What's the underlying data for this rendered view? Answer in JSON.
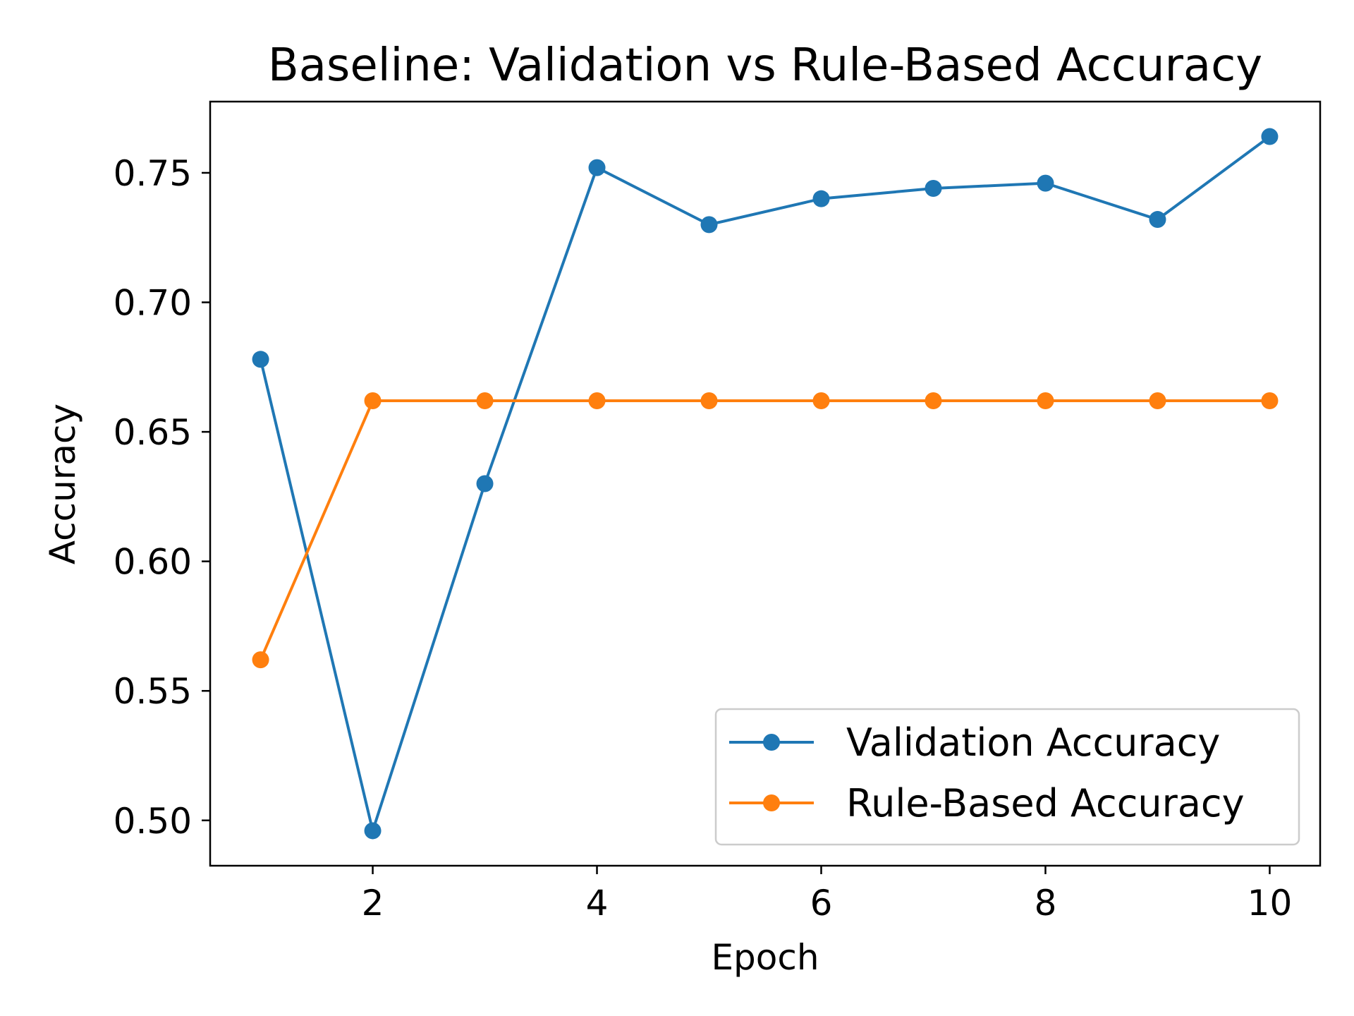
{
  "chart_data": {
    "type": "line",
    "title": "Baseline: Validation vs Rule-Based Accuracy",
    "xlabel": "Epoch",
    "ylabel": "Accuracy",
    "x": [
      1,
      2,
      3,
      4,
      5,
      6,
      7,
      8,
      9,
      10
    ],
    "xticks": [
      "2",
      "4",
      "6",
      "8",
      "10"
    ],
    "xtick_values": [
      2,
      4,
      6,
      8,
      10
    ],
    "yticks": [
      "0.50",
      "0.55",
      "0.60",
      "0.65",
      "0.70",
      "0.75"
    ],
    "ytick_values": [
      0.5,
      0.55,
      0.6,
      0.65,
      0.7,
      0.75
    ],
    "xlim": [
      0.55,
      10.45
    ],
    "ylim": [
      0.4825,
      0.7775
    ],
    "grid": false,
    "legend_position": "lower-right",
    "series": [
      {
        "name": "Validation Accuracy",
        "color": "#1f77b4",
        "marker": "circle",
        "values": [
          0.678,
          0.496,
          0.63,
          0.752,
          0.73,
          0.74,
          0.744,
          0.746,
          0.732,
          0.764
        ]
      },
      {
        "name": "Rule-Based Accuracy",
        "color": "#ff7f0e",
        "marker": "circle",
        "values": [
          0.562,
          0.662,
          0.662,
          0.662,
          0.662,
          0.662,
          0.662,
          0.662,
          0.662,
          0.662
        ]
      }
    ]
  }
}
